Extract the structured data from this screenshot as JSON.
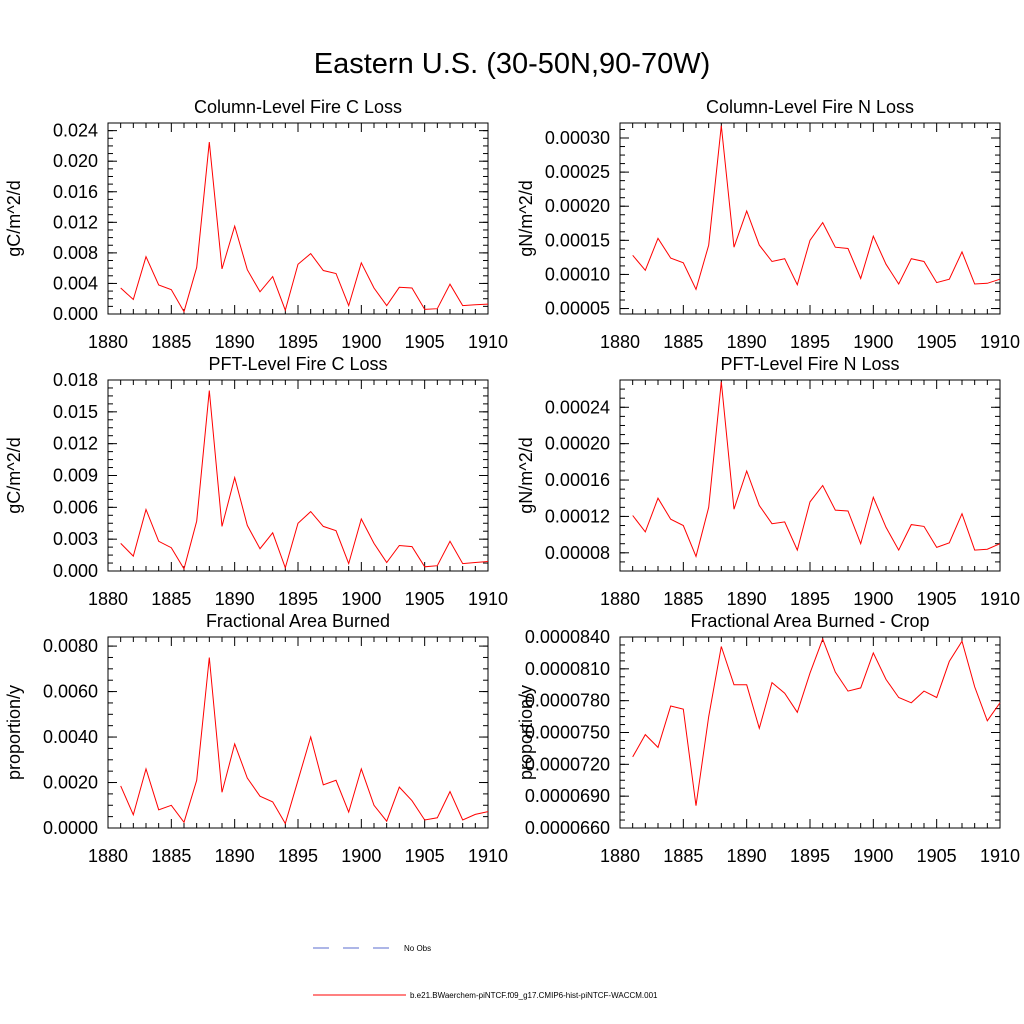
{
  "title": "Eastern U.S. (30-50N,90-70W)",
  "legend": [
    {
      "label": "No Obs",
      "color": "#5b6dcf",
      "style": "dashed"
    },
    {
      "label": "b.e21.BWaerchem-piNTCF.f09_g17.CMIP6-hist-piNTCF-WACCM.001",
      "color": "#ff0000",
      "style": "solid"
    }
  ],
  "chart_data": [
    {
      "type": "line",
      "title": "Column-Level Fire C Loss",
      "ylabel": "gC/m^2/d",
      "xlim": [
        1880,
        1910
      ],
      "ylim": [
        0,
        0.025
      ],
      "yticks": [
        "0.000",
        "0.004",
        "0.008",
        "0.012",
        "0.016",
        "0.020",
        "0.024"
      ],
      "xticks": [
        "1880",
        "1885",
        "1890",
        "1895",
        "1900",
        "1905",
        "1910"
      ],
      "x": [
        1881,
        1882,
        1883,
        1884,
        1885,
        1886,
        1887,
        1888,
        1889,
        1890,
        1891,
        1892,
        1893,
        1894,
        1895,
        1896,
        1897,
        1898,
        1899,
        1900,
        1901,
        1902,
        1903,
        1904,
        1905,
        1906,
        1907,
        1908,
        1909,
        1910
      ],
      "series": [
        {
          "color": "#ff0000",
          "values": [
            0.0034,
            0.0019,
            0.0075,
            0.0038,
            0.0032,
            0.0003,
            0.0061,
            0.0225,
            0.0059,
            0.0115,
            0.0058,
            0.0029,
            0.0049,
            0.0005,
            0.0065,
            0.0079,
            0.0057,
            0.0053,
            0.0011,
            0.0067,
            0.0034,
            0.0011,
            0.0035,
            0.0034,
            0.0006,
            0.0007,
            0.0039,
            0.0011,
            0.0012,
            0.0013
          ]
        }
      ]
    },
    {
      "type": "line",
      "title": "Column-Level Fire N Loss",
      "ylabel": "gN/m^2/d",
      "xlim": [
        1880,
        1910
      ],
      "ylim": [
        4.2e-05,
        0.000322
      ],
      "yticks": [
        "0.00005",
        "0.00010",
        "0.00015",
        "0.00020",
        "0.00025",
        "0.00030"
      ],
      "xticks": [
        "1880",
        "1885",
        "1890",
        "1895",
        "1900",
        "1905",
        "1910"
      ],
      "x": [
        1881,
        1882,
        1883,
        1884,
        1885,
        1886,
        1887,
        1888,
        1889,
        1890,
        1891,
        1892,
        1893,
        1894,
        1895,
        1896,
        1897,
        1898,
        1899,
        1900,
        1901,
        1902,
        1903,
        1904,
        1905,
        1906,
        1907,
        1908,
        1909,
        1910
      ],
      "series": [
        {
          "color": "#ff0000",
          "values": [
            0.000128,
            0.000106,
            0.000153,
            0.000124,
            0.000117,
            7.8e-05,
            0.000143,
            0.000318,
            0.00014,
            0.000193,
            0.000143,
            0.000119,
            0.000123,
            8.5e-05,
            0.00015,
            0.000176,
            0.00014,
            0.000138,
            9.4e-05,
            0.000156,
            0.000115,
            8.6e-05,
            0.000123,
            0.000119,
            8.8e-05,
            9.3e-05,
            0.000133,
            8.6e-05,
            8.7e-05,
            9.3e-05
          ]
        }
      ]
    },
    {
      "type": "line",
      "title": "PFT-Level Fire C Loss",
      "ylabel": "gC/m^2/d",
      "xlim": [
        1880,
        1910
      ],
      "ylim": [
        0,
        0.018
      ],
      "yticks": [
        "0.000",
        "0.003",
        "0.006",
        "0.009",
        "0.012",
        "0.015",
        "0.018"
      ],
      "xticks": [
        "1880",
        "1885",
        "1890",
        "1895",
        "1900",
        "1905",
        "1910"
      ],
      "x": [
        1881,
        1882,
        1883,
        1884,
        1885,
        1886,
        1887,
        1888,
        1889,
        1890,
        1891,
        1892,
        1893,
        1894,
        1895,
        1896,
        1897,
        1898,
        1899,
        1900,
        1901,
        1902,
        1903,
        1904,
        1905,
        1906,
        1907,
        1908,
        1909,
        1910
      ],
      "series": [
        {
          "color": "#ff0000",
          "values": [
            0.0026,
            0.0014,
            0.0058,
            0.0028,
            0.0022,
            0.0002,
            0.0047,
            0.017,
            0.0042,
            0.0088,
            0.0043,
            0.0021,
            0.0036,
            0.0003,
            0.0045,
            0.0056,
            0.0042,
            0.0038,
            0.0007,
            0.0049,
            0.0026,
            0.0008,
            0.0024,
            0.0023,
            0.0004,
            0.0005,
            0.0028,
            0.0007,
            0.0008,
            0.0009
          ]
        }
      ]
    },
    {
      "type": "line",
      "title": "PFT-Level Fire N Loss",
      "ylabel": "gN/m^2/d",
      "xlim": [
        1880,
        1910
      ],
      "ylim": [
        6e-05,
        0.00027
      ],
      "yticks": [
        "0.00008",
        "0.00012",
        "0.00016",
        "0.00020",
        "0.00024"
      ],
      "xticks": [
        "1880",
        "1885",
        "1890",
        "1895",
        "1900",
        "1905",
        "1910"
      ],
      "x": [
        1881,
        1882,
        1883,
        1884,
        1885,
        1886,
        1887,
        1888,
        1889,
        1890,
        1891,
        1892,
        1893,
        1894,
        1895,
        1896,
        1897,
        1898,
        1899,
        1900,
        1901,
        1902,
        1903,
        1904,
        1905,
        1906,
        1907,
        1908,
        1909,
        1910
      ],
      "series": [
        {
          "color": "#ff0000",
          "values": [
            0.000121,
            0.000103,
            0.00014,
            0.000117,
            0.00011,
            7.6e-05,
            0.00013,
            0.000268,
            0.000128,
            0.00017,
            0.000132,
            0.000112,
            0.000114,
            8.3e-05,
            0.000136,
            0.000154,
            0.000127,
            0.000126,
            9e-05,
            0.000141,
            0.000108,
            8.3e-05,
            0.000111,
            0.000109,
            8.6e-05,
            9.1e-05,
            0.000123,
            8.3e-05,
            8.4e-05,
            9e-05
          ]
        }
      ]
    },
    {
      "type": "line",
      "title": "Fractional Area Burned",
      "ylabel": "proportion/y",
      "xlim": [
        1880,
        1910
      ],
      "ylim": [
        0,
        0.0084
      ],
      "yticks": [
        "0.0000",
        "0.0020",
        "0.0040",
        "0.0060",
        "0.0080"
      ],
      "xticks": [
        "1880",
        "1885",
        "1890",
        "1895",
        "1900",
        "1905",
        "1910"
      ],
      "x": [
        1881,
        1882,
        1883,
        1884,
        1885,
        1886,
        1887,
        1888,
        1889,
        1890,
        1891,
        1892,
        1893,
        1894,
        1895,
        1896,
        1897,
        1898,
        1899,
        1900,
        1901,
        1902,
        1903,
        1904,
        1905,
        1906,
        1907,
        1908,
        1909,
        1910
      ],
      "series": [
        {
          "color": "#ff0000",
          "values": [
            0.00185,
            0.00058,
            0.0026,
            0.0008,
            0.001,
            0.00025,
            0.0021,
            0.0075,
            0.00157,
            0.0037,
            0.0022,
            0.0014,
            0.00115,
            0.0002,
            0.0021,
            0.004,
            0.0019,
            0.0021,
            0.0007,
            0.0026,
            0.001,
            0.0003,
            0.0018,
            0.0012,
            0.00035,
            0.00045,
            0.0016,
            0.00035,
            0.0006,
            0.00072
          ]
        }
      ]
    },
    {
      "type": "line",
      "title": "Fractional Area Burned - Crop",
      "ylabel": "proportion/y",
      "xlim": [
        1880,
        1910
      ],
      "ylim": [
        6.6e-05,
        8.4e-05
      ],
      "yticks": [
        "0.0000660",
        "0.0000690",
        "0.0000720",
        "0.0000750",
        "0.0000780",
        "0.0000810",
        "0.0000840"
      ],
      "xticks": [
        "1880",
        "1885",
        "1890",
        "1895",
        "1900",
        "1905",
        "1910"
      ],
      "x": [
        1881,
        1882,
        1883,
        1884,
        1885,
        1886,
        1887,
        1888,
        1889,
        1890,
        1891,
        1892,
        1893,
        1894,
        1895,
        1896,
        1897,
        1898,
        1899,
        1900,
        1901,
        1902,
        1903,
        1904,
        1905,
        1906,
        1907,
        1908,
        1909,
        1910
      ],
      "series": [
        {
          "color": "#ff0000",
          "values": [
            7.27e-05,
            7.48e-05,
            7.36e-05,
            7.75e-05,
            7.72e-05,
            6.81e-05,
            7.65e-05,
            8.31e-05,
            7.95e-05,
            7.95e-05,
            7.54e-05,
            7.97e-05,
            7.87e-05,
            7.69e-05,
            8.06e-05,
            8.38e-05,
            8.07e-05,
            7.89e-05,
            7.92e-05,
            8.25e-05,
            8e-05,
            7.83e-05,
            7.78e-05,
            7.89e-05,
            7.83e-05,
            8.17e-05,
            8.36e-05,
            7.93e-05,
            7.61e-05,
            7.78e-05
          ]
        }
      ]
    }
  ]
}
